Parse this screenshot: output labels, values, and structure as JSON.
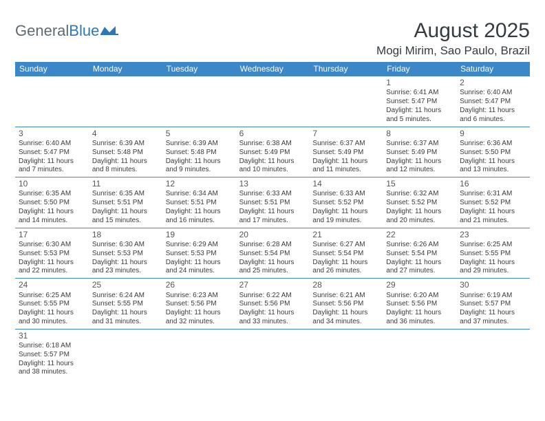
{
  "logo": {
    "text1": "General",
    "text2": "Blue"
  },
  "title": "August 2025",
  "location": "Mogi Mirim, Sao Paulo, Brazil",
  "colors": {
    "header_bg": "#3b87c8",
    "header_text": "#ffffff",
    "row_border": "#3b87c8",
    "body_text": "#3a3a3a",
    "title_text": "#343b42",
    "logo_gray": "#5f6a73",
    "logo_blue": "#2f77b8",
    "background": "#ffffff"
  },
  "day_names": [
    "Sunday",
    "Monday",
    "Tuesday",
    "Wednesday",
    "Thursday",
    "Friday",
    "Saturday"
  ],
  "weeks": [
    [
      null,
      null,
      null,
      null,
      null,
      {
        "n": "1",
        "sr": "Sunrise: 6:41 AM",
        "ss": "Sunset: 5:47 PM",
        "d1": "Daylight: 11 hours",
        "d2": "and 5 minutes."
      },
      {
        "n": "2",
        "sr": "Sunrise: 6:40 AM",
        "ss": "Sunset: 5:47 PM",
        "d1": "Daylight: 11 hours",
        "d2": "and 6 minutes."
      }
    ],
    [
      {
        "n": "3",
        "sr": "Sunrise: 6:40 AM",
        "ss": "Sunset: 5:47 PM",
        "d1": "Daylight: 11 hours",
        "d2": "and 7 minutes."
      },
      {
        "n": "4",
        "sr": "Sunrise: 6:39 AM",
        "ss": "Sunset: 5:48 PM",
        "d1": "Daylight: 11 hours",
        "d2": "and 8 minutes."
      },
      {
        "n": "5",
        "sr": "Sunrise: 6:39 AM",
        "ss": "Sunset: 5:48 PM",
        "d1": "Daylight: 11 hours",
        "d2": "and 9 minutes."
      },
      {
        "n": "6",
        "sr": "Sunrise: 6:38 AM",
        "ss": "Sunset: 5:49 PM",
        "d1": "Daylight: 11 hours",
        "d2": "and 10 minutes."
      },
      {
        "n": "7",
        "sr": "Sunrise: 6:37 AM",
        "ss": "Sunset: 5:49 PM",
        "d1": "Daylight: 11 hours",
        "d2": "and 11 minutes."
      },
      {
        "n": "8",
        "sr": "Sunrise: 6:37 AM",
        "ss": "Sunset: 5:49 PM",
        "d1": "Daylight: 11 hours",
        "d2": "and 12 minutes."
      },
      {
        "n": "9",
        "sr": "Sunrise: 6:36 AM",
        "ss": "Sunset: 5:50 PM",
        "d1": "Daylight: 11 hours",
        "d2": "and 13 minutes."
      }
    ],
    [
      {
        "n": "10",
        "sr": "Sunrise: 6:35 AM",
        "ss": "Sunset: 5:50 PM",
        "d1": "Daylight: 11 hours",
        "d2": "and 14 minutes."
      },
      {
        "n": "11",
        "sr": "Sunrise: 6:35 AM",
        "ss": "Sunset: 5:51 PM",
        "d1": "Daylight: 11 hours",
        "d2": "and 15 minutes."
      },
      {
        "n": "12",
        "sr": "Sunrise: 6:34 AM",
        "ss": "Sunset: 5:51 PM",
        "d1": "Daylight: 11 hours",
        "d2": "and 16 minutes."
      },
      {
        "n": "13",
        "sr": "Sunrise: 6:33 AM",
        "ss": "Sunset: 5:51 PM",
        "d1": "Daylight: 11 hours",
        "d2": "and 17 minutes."
      },
      {
        "n": "14",
        "sr": "Sunrise: 6:33 AM",
        "ss": "Sunset: 5:52 PM",
        "d1": "Daylight: 11 hours",
        "d2": "and 19 minutes."
      },
      {
        "n": "15",
        "sr": "Sunrise: 6:32 AM",
        "ss": "Sunset: 5:52 PM",
        "d1": "Daylight: 11 hours",
        "d2": "and 20 minutes."
      },
      {
        "n": "16",
        "sr": "Sunrise: 6:31 AM",
        "ss": "Sunset: 5:52 PM",
        "d1": "Daylight: 11 hours",
        "d2": "and 21 minutes."
      }
    ],
    [
      {
        "n": "17",
        "sr": "Sunrise: 6:30 AM",
        "ss": "Sunset: 5:53 PM",
        "d1": "Daylight: 11 hours",
        "d2": "and 22 minutes."
      },
      {
        "n": "18",
        "sr": "Sunrise: 6:30 AM",
        "ss": "Sunset: 5:53 PM",
        "d1": "Daylight: 11 hours",
        "d2": "and 23 minutes."
      },
      {
        "n": "19",
        "sr": "Sunrise: 6:29 AM",
        "ss": "Sunset: 5:53 PM",
        "d1": "Daylight: 11 hours",
        "d2": "and 24 minutes."
      },
      {
        "n": "20",
        "sr": "Sunrise: 6:28 AM",
        "ss": "Sunset: 5:54 PM",
        "d1": "Daylight: 11 hours",
        "d2": "and 25 minutes."
      },
      {
        "n": "21",
        "sr": "Sunrise: 6:27 AM",
        "ss": "Sunset: 5:54 PM",
        "d1": "Daylight: 11 hours",
        "d2": "and 26 minutes."
      },
      {
        "n": "22",
        "sr": "Sunrise: 6:26 AM",
        "ss": "Sunset: 5:54 PM",
        "d1": "Daylight: 11 hours",
        "d2": "and 27 minutes."
      },
      {
        "n": "23",
        "sr": "Sunrise: 6:25 AM",
        "ss": "Sunset: 5:55 PM",
        "d1": "Daylight: 11 hours",
        "d2": "and 29 minutes."
      }
    ],
    [
      {
        "n": "24",
        "sr": "Sunrise: 6:25 AM",
        "ss": "Sunset: 5:55 PM",
        "d1": "Daylight: 11 hours",
        "d2": "and 30 minutes."
      },
      {
        "n": "25",
        "sr": "Sunrise: 6:24 AM",
        "ss": "Sunset: 5:55 PM",
        "d1": "Daylight: 11 hours",
        "d2": "and 31 minutes."
      },
      {
        "n": "26",
        "sr": "Sunrise: 6:23 AM",
        "ss": "Sunset: 5:56 PM",
        "d1": "Daylight: 11 hours",
        "d2": "and 32 minutes."
      },
      {
        "n": "27",
        "sr": "Sunrise: 6:22 AM",
        "ss": "Sunset: 5:56 PM",
        "d1": "Daylight: 11 hours",
        "d2": "and 33 minutes."
      },
      {
        "n": "28",
        "sr": "Sunrise: 6:21 AM",
        "ss": "Sunset: 5:56 PM",
        "d1": "Daylight: 11 hours",
        "d2": "and 34 minutes."
      },
      {
        "n": "29",
        "sr": "Sunrise: 6:20 AM",
        "ss": "Sunset: 5:56 PM",
        "d1": "Daylight: 11 hours",
        "d2": "and 36 minutes."
      },
      {
        "n": "30",
        "sr": "Sunrise: 6:19 AM",
        "ss": "Sunset: 5:57 PM",
        "d1": "Daylight: 11 hours",
        "d2": "and 37 minutes."
      }
    ],
    [
      {
        "n": "31",
        "sr": "Sunrise: 6:18 AM",
        "ss": "Sunset: 5:57 PM",
        "d1": "Daylight: 11 hours",
        "d2": "and 38 minutes."
      },
      null,
      null,
      null,
      null,
      null,
      null
    ]
  ]
}
